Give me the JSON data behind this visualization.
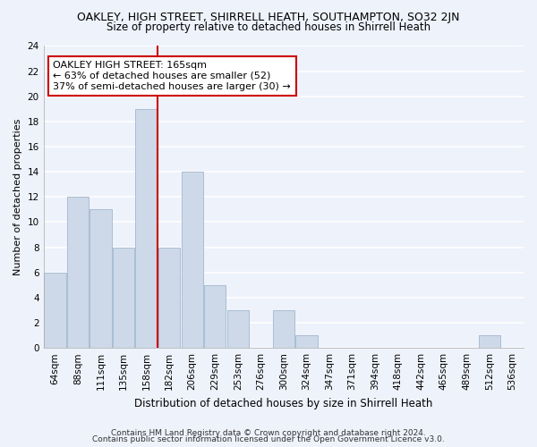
{
  "title": "OAKLEY, HIGH STREET, SHIRRELL HEATH, SOUTHAMPTON, SO32 2JN",
  "subtitle": "Size of property relative to detached houses in Shirrell Heath",
  "xlabel": "Distribution of detached houses by size in Shirrell Heath",
  "ylabel": "Number of detached properties",
  "categories": [
    "64sqm",
    "88sqm",
    "111sqm",
    "135sqm",
    "158sqm",
    "182sqm",
    "206sqm",
    "229sqm",
    "253sqm",
    "276sqm",
    "300sqm",
    "324sqm",
    "347sqm",
    "371sqm",
    "394sqm",
    "418sqm",
    "442sqm",
    "465sqm",
    "489sqm",
    "512sqm",
    "536sqm"
  ],
  "values": [
    6,
    12,
    11,
    8,
    19,
    8,
    14,
    5,
    3,
    0,
    3,
    1,
    0,
    0,
    0,
    0,
    0,
    0,
    0,
    1,
    0
  ],
  "bar_color": "#cdd9e8",
  "bar_edge_color": "#aabdd4",
  "vline_color": "#cc0000",
  "annotation_text": "OAKLEY HIGH STREET: 165sqm\n← 63% of detached houses are smaller (52)\n37% of semi-detached houses are larger (30) →",
  "annotation_box_color": "white",
  "annotation_box_edge_color": "#cc0000",
  "ylim": [
    0,
    24
  ],
  "yticks": [
    0,
    2,
    4,
    6,
    8,
    10,
    12,
    14,
    16,
    18,
    20,
    22,
    24
  ],
  "background_color": "#eef2fb",
  "plot_bg_color": "#eef2fb",
  "grid_color": "white",
  "footer_line1": "Contains HM Land Registry data © Crown copyright and database right 2024.",
  "footer_line2": "Contains public sector information licensed under the Open Government Licence v3.0.",
  "title_fontsize": 9,
  "subtitle_fontsize": 8.5,
  "ylabel_fontsize": 8,
  "xlabel_fontsize": 8.5,
  "tick_fontsize": 7.5,
  "footer_fontsize": 6.5,
  "annot_fontsize": 8
}
